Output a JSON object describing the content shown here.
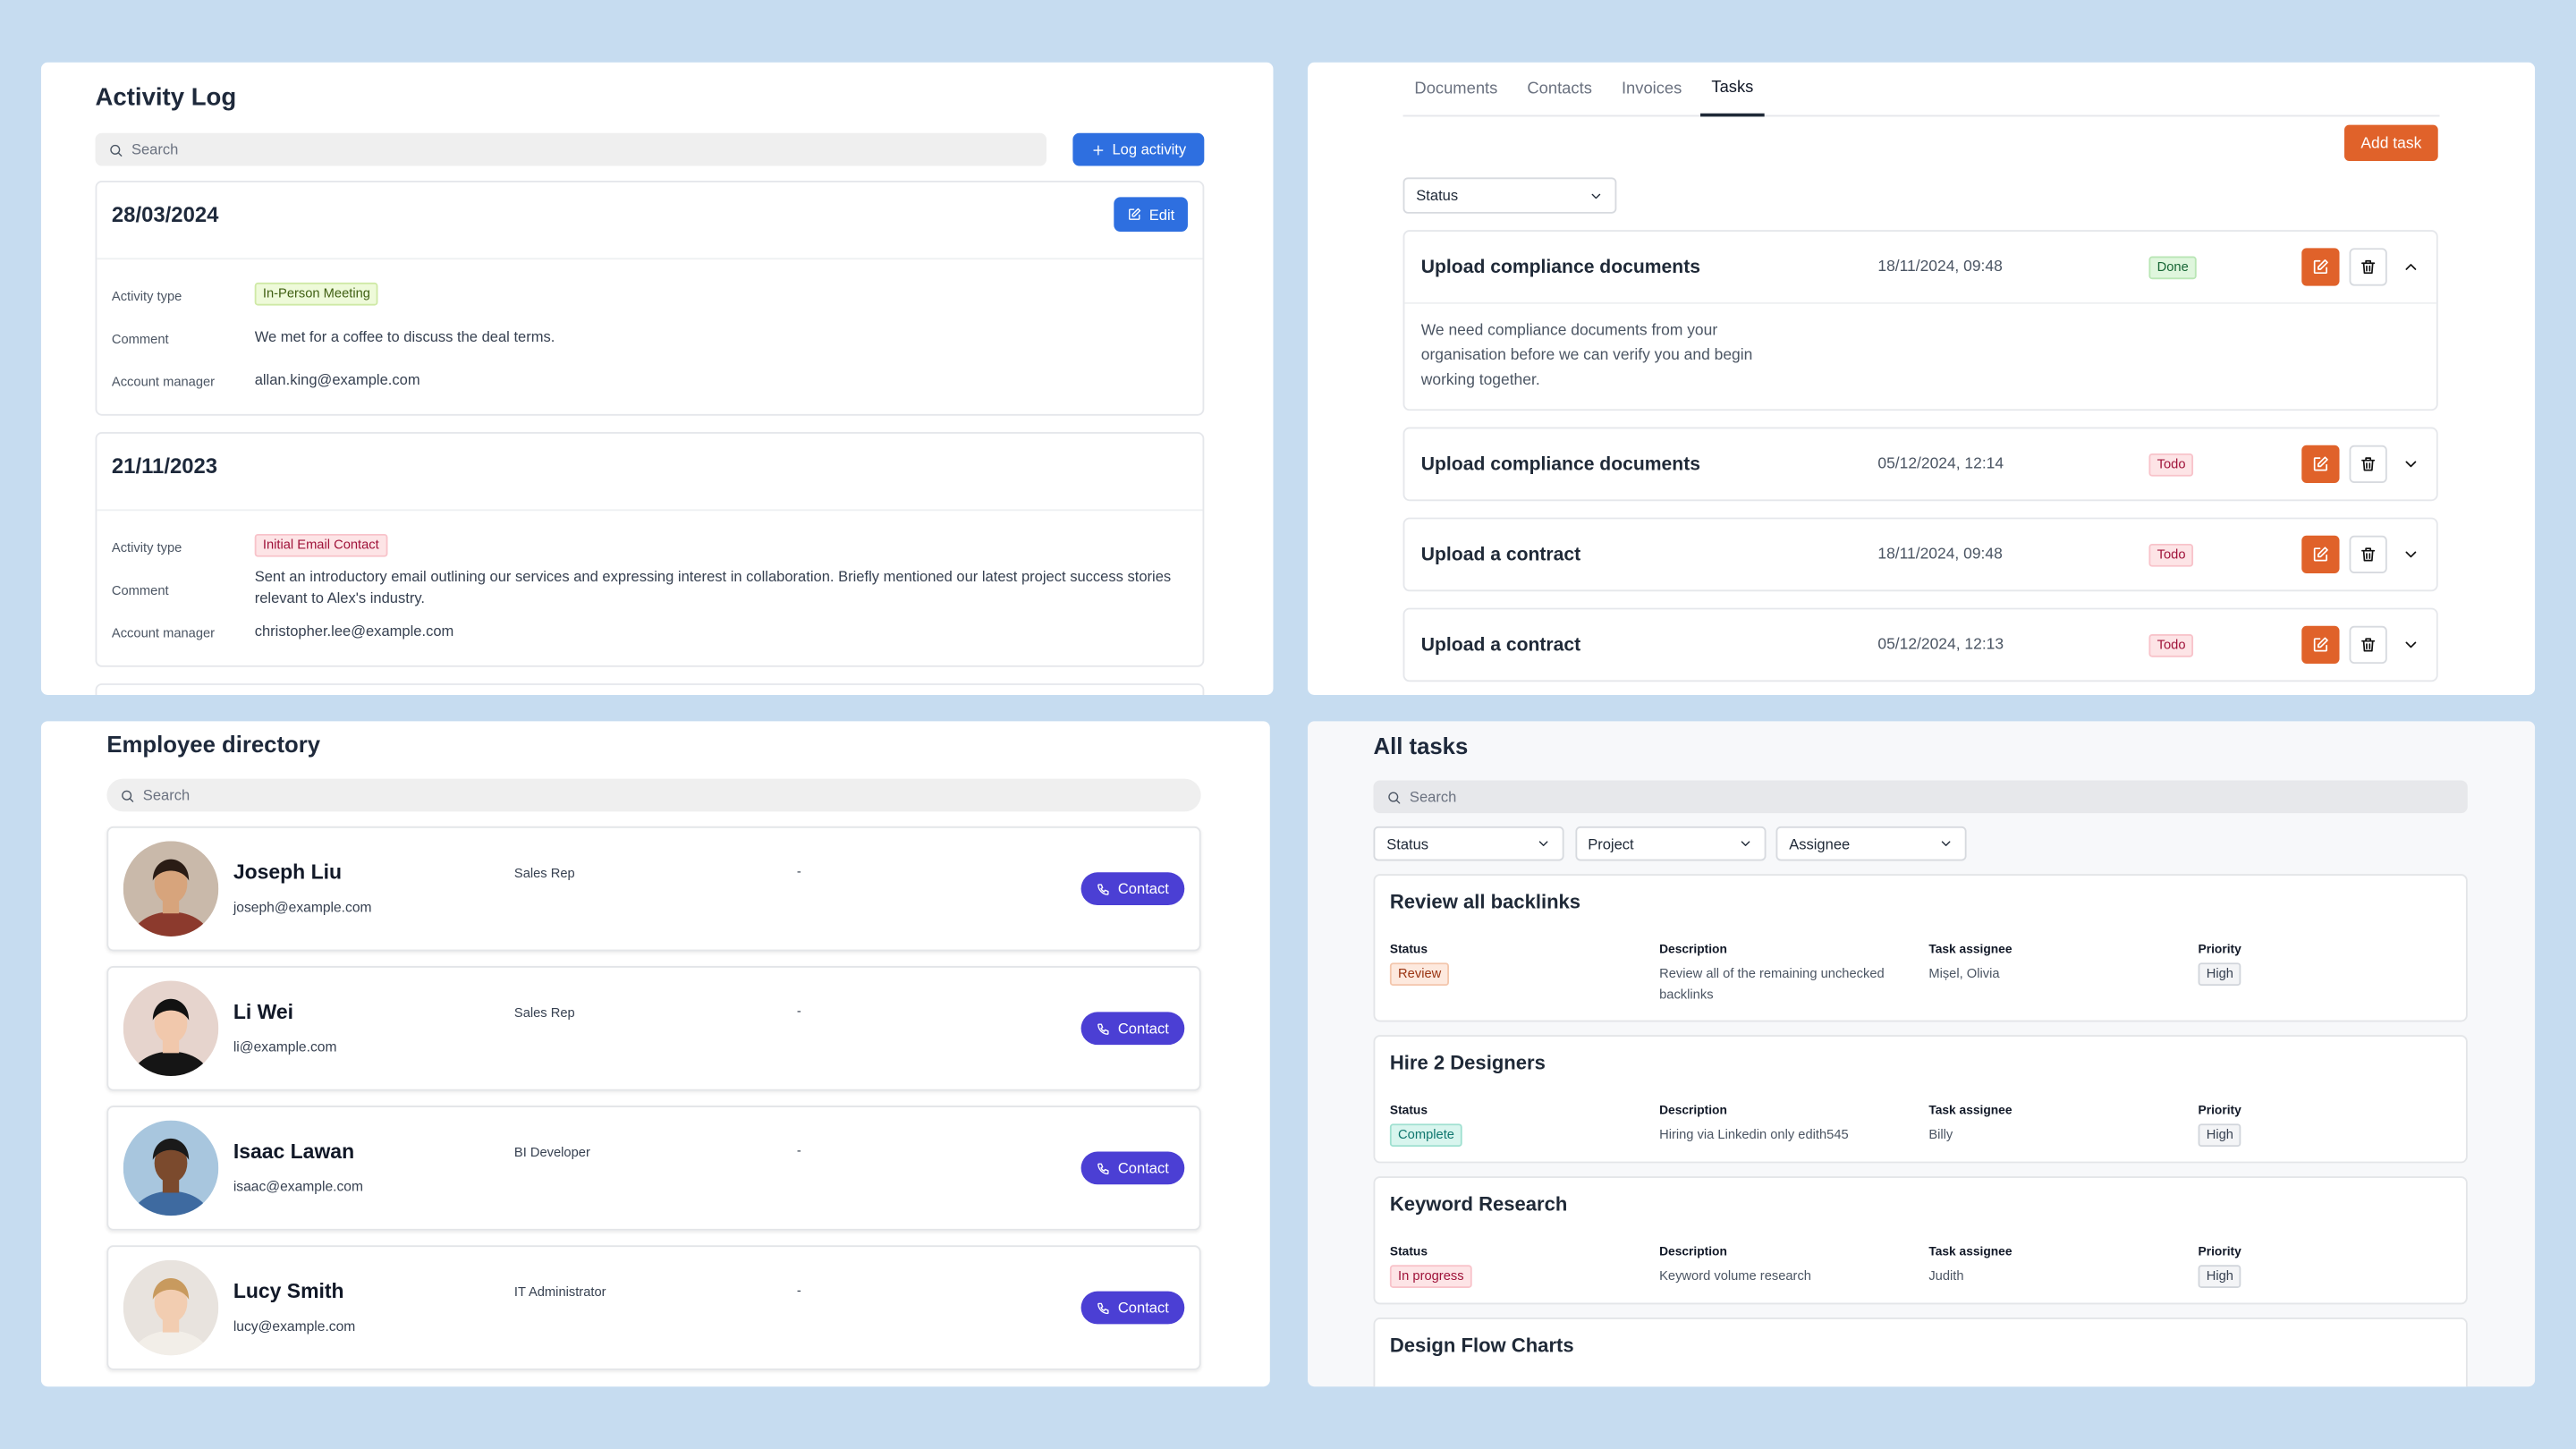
{
  "activity_log": {
    "title": "Activity Log",
    "search_placeholder": "Search",
    "log_button": "Log activity",
    "entries": [
      {
        "date": "28/03/2024",
        "edit_button": "Edit",
        "fields": [
          {
            "label": "Activity type",
            "value": "In-Person Meeting",
            "tone": "lime"
          },
          {
            "label": "Comment",
            "value": "We met for a coffee to discuss the deal terms."
          },
          {
            "label": "Account manager",
            "value": "allan.king@example.com"
          }
        ]
      },
      {
        "date": "21/11/2023",
        "fields": [
          {
            "label": "Activity type",
            "value": "Initial Email Contact",
            "tone": "red"
          },
          {
            "label": "Comment",
            "value": "Sent an introductory email outlining our services and expressing interest in collaboration. Briefly mentioned our latest project success stories relevant to Alex's industry."
          },
          {
            "label": "Account manager",
            "value": "christopher.lee@example.com"
          }
        ]
      }
    ]
  },
  "tasks_panel": {
    "tabs": [
      "Documents",
      "Contacts",
      "Invoices",
      "Tasks"
    ],
    "active_tab": 3,
    "add_button": "Add task",
    "status_filter": "Status",
    "tasks": [
      {
        "title": "Upload compliance documents",
        "datetime": "18/11/2024, 09:48",
        "status": "Done",
        "tone": "green",
        "expanded": true,
        "description": "We need compliance documents from your organisation before we can verify you and begin working together."
      },
      {
        "title": "Upload compliance documents",
        "datetime": "05/12/2024, 12:14",
        "status": "Todo",
        "tone": "red",
        "expanded": false
      },
      {
        "title": "Upload a contract",
        "datetime": "18/11/2024, 09:48",
        "status": "Todo",
        "tone": "red",
        "expanded": false
      },
      {
        "title": "Upload a contract",
        "datetime": "05/12/2024, 12:13",
        "status": "Todo",
        "tone": "red",
        "expanded": false
      }
    ]
  },
  "employee_directory": {
    "title": "Employee directory",
    "search_placeholder": "Search",
    "employees": [
      {
        "name": "Joseph Liu",
        "role": "Sales Rep",
        "detail": "-",
        "email": "joseph@example.com",
        "button": "Contact"
      },
      {
        "name": "Li Wei",
        "role": "Sales Rep",
        "detail": "-",
        "email": "li@example.com",
        "button": "Contact"
      },
      {
        "name": "Isaac Lawan",
        "role": "BI Developer",
        "detail": "-",
        "email": "isaac@example.com",
        "button": "Contact"
      },
      {
        "name": "Lucy Smith",
        "role": "IT Administrator",
        "detail": "-",
        "email": "lucy@example.com",
        "button": "Contact"
      }
    ]
  },
  "all_tasks": {
    "title": "All tasks",
    "search_placeholder": "Search",
    "filters": [
      "Status",
      "Project",
      "Assignee"
    ],
    "field_labels": [
      "Status",
      "Description",
      "Task assignee",
      "Priority"
    ],
    "tasks": [
      {
        "title": "Review all backlinks",
        "status": "Review",
        "tone": "orange",
        "description": "Review all of the remaining unchecked backlinks",
        "assignee": "Mișel, Olivia",
        "priority": "High"
      },
      {
        "title": "Hire 2 Designers",
        "status": "Complete",
        "tone": "teal",
        "description": "Hiring via Linkedin only edith545",
        "assignee": "Billy",
        "priority": "High"
      },
      {
        "title": "Keyword Research",
        "status": "In progress",
        "tone": "red",
        "description": "Keyword volume research",
        "assignee": "Judith",
        "priority": "High"
      },
      {
        "title": "Design Flow Charts"
      }
    ]
  }
}
